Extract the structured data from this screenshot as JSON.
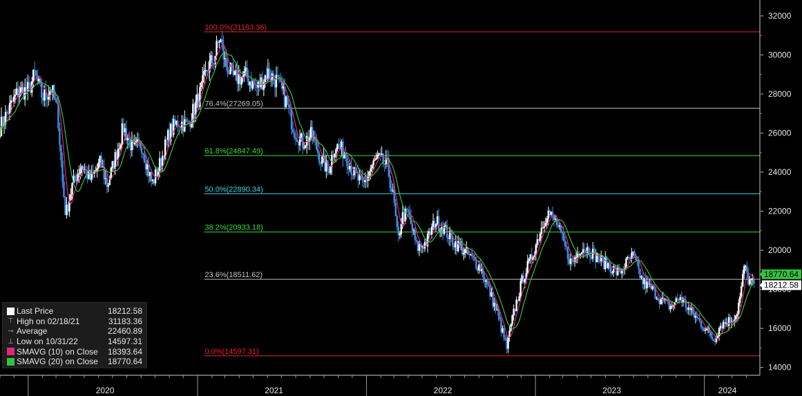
{
  "chart_data": {
    "type": "candlestick",
    "y_range": [
      13600,
      32600
    ],
    "y_ticks": [
      14000,
      16000,
      18000,
      20000,
      22000,
      24000,
      26000,
      28000,
      30000,
      32000
    ],
    "x_range": [
      "2019-11-01",
      "2024-04-18"
    ],
    "x_year_labels": [
      {
        "label": "2020",
        "center": "2020-06-15"
      },
      {
        "label": "2021",
        "center": "2021-06-15"
      },
      {
        "label": "2022",
        "center": "2022-06-15"
      },
      {
        "label": "2023",
        "center": "2023-06-15"
      },
      {
        "label": "2024",
        "center": "2024-02-20"
      }
    ],
    "x_year_boundaries": [
      "2020-01-01",
      "2021-01-01",
      "2022-01-01",
      "2023-01-01",
      "2024-01-01"
    ],
    "fibonacci": {
      "start_date": "2021-01-15",
      "levels": [
        {
          "text": "100.0%(31183.36)",
          "value": 31183.36,
          "color": "#e8252a"
        },
        {
          "text": "76.4%(27269.05)",
          "value": 27269.05,
          "color": "#c0c0c0"
        },
        {
          "text": "61.8%(24847.49)",
          "value": 24847.49,
          "color": "#3adf3a"
        },
        {
          "text": "50.0%(22890.34)",
          "value": 22890.34,
          "color": "#3ad6e6"
        },
        {
          "text": "38.2%(20933.18)",
          "value": 20933.18,
          "color": "#3adf3a"
        },
        {
          "text": "23.6%(18511.62)",
          "value": 18511.62,
          "color": "#c0c0c0"
        },
        {
          "text": "0.0%(14597.31)",
          "value": 14597.31,
          "color": "#e8252a"
        }
      ]
    },
    "price_path": [
      [
        "2019-11-01",
        26300
      ],
      [
        "2019-11-20",
        27200
      ],
      [
        "2019-12-10",
        28100
      ],
      [
        "2020-01-02",
        28200
      ],
      [
        "2020-01-15",
        29000
      ],
      [
        "2020-02-01",
        27800
      ],
      [
        "2020-02-20",
        28300
      ],
      [
        "2020-03-05",
        27000
      ],
      [
        "2020-03-15",
        23500
      ],
      [
        "2020-03-22",
        21800
      ],
      [
        "2020-04-05",
        23300
      ],
      [
        "2020-04-25",
        24400
      ],
      [
        "2020-05-15",
        23600
      ],
      [
        "2020-06-05",
        24500
      ],
      [
        "2020-06-20",
        23300
      ],
      [
        "2020-07-10",
        25000
      ],
      [
        "2020-07-25",
        26300
      ],
      [
        "2020-08-15",
        25100
      ],
      [
        "2020-09-01",
        25500
      ],
      [
        "2020-09-15",
        24200
      ],
      [
        "2020-09-25",
        23400
      ],
      [
        "2020-10-10",
        24300
      ],
      [
        "2020-11-01",
        26000
      ],
      [
        "2020-11-20",
        26600
      ],
      [
        "2020-12-10",
        26400
      ],
      [
        "2021-01-05",
        27900
      ],
      [
        "2021-01-22",
        29300
      ],
      [
        "2021-02-05",
        29800
      ],
      [
        "2021-02-18",
        30900
      ],
      [
        "2021-03-01",
        29600
      ],
      [
        "2021-03-20",
        28800
      ],
      [
        "2021-04-15",
        28900
      ],
      [
        "2021-05-10",
        28300
      ],
      [
        "2021-06-01",
        29100
      ],
      [
        "2021-06-20",
        28700
      ],
      [
        "2021-07-10",
        27700
      ],
      [
        "2021-07-28",
        26200
      ],
      [
        "2021-08-15",
        25500
      ],
      [
        "2021-09-05",
        25900
      ],
      [
        "2021-09-25",
        24600
      ],
      [
        "2021-10-10",
        24100
      ],
      [
        "2021-10-25",
        25400
      ],
      [
        "2021-11-15",
        25000
      ],
      [
        "2021-12-05",
        23900
      ],
      [
        "2021-12-25",
        23300
      ],
      [
        "2022-01-10",
        24200
      ],
      [
        "2022-01-25",
        24700
      ],
      [
        "2022-02-15",
        24300
      ],
      [
        "2022-03-01",
        22500
      ],
      [
        "2022-03-10",
        20400
      ],
      [
        "2022-03-18",
        21700
      ],
      [
        "2022-04-01",
        21900
      ],
      [
        "2022-04-20",
        20100
      ],
      [
        "2022-05-10",
        20400
      ],
      [
        "2022-05-30",
        21500
      ],
      [
        "2022-06-15",
        21200
      ],
      [
        "2022-07-05",
        20500
      ],
      [
        "2022-07-25",
        20100
      ],
      [
        "2022-08-15",
        19600
      ],
      [
        "2022-09-05",
        19100
      ],
      [
        "2022-09-25",
        17800
      ],
      [
        "2022-10-10",
        16800
      ],
      [
        "2022-10-31",
        15000
      ],
      [
        "2022-11-15",
        16800
      ],
      [
        "2022-12-05",
        18600
      ],
      [
        "2022-12-25",
        19700
      ],
      [
        "2023-01-10",
        20900
      ],
      [
        "2023-01-27",
        22000
      ],
      [
        "2023-02-15",
        21400
      ],
      [
        "2023-03-05",
        20200
      ],
      [
        "2023-03-20",
        19300
      ],
      [
        "2023-04-10",
        20200
      ],
      [
        "2023-04-28",
        20000
      ],
      [
        "2023-05-20",
        19500
      ],
      [
        "2023-06-10",
        19200
      ],
      [
        "2023-06-30",
        18800
      ],
      [
        "2023-07-15",
        19300
      ],
      [
        "2023-07-31",
        19700
      ],
      [
        "2023-08-20",
        18400
      ],
      [
        "2023-09-10",
        18000
      ],
      [
        "2023-10-01",
        17400
      ],
      [
        "2023-10-20",
        17100
      ],
      [
        "2023-11-10",
        17600
      ],
      [
        "2023-12-01",
        16900
      ],
      [
        "2023-12-20",
        16400
      ],
      [
        "2024-01-10",
        15800
      ],
      [
        "2024-01-22",
        15400
      ],
      [
        "2024-02-05",
        16200
      ],
      [
        "2024-02-25",
        16400
      ],
      [
        "2024-03-10",
        16700
      ],
      [
        "2024-03-20",
        17800
      ],
      [
        "2024-03-27",
        19200
      ],
      [
        "2024-04-05",
        18500
      ],
      [
        "2024-04-18",
        18212
      ]
    ],
    "sma10_color": "#e0287a",
    "sma20_color": "#35c23e",
    "candle_up_color": "#ffffff",
    "candle_down_color": "#3d8fe6",
    "last_price_tags": [
      {
        "text": "18770.64",
        "value": 18770.64,
        "bg": "#35c23e",
        "fg": "#000000"
      },
      {
        "text": "18212.58",
        "value": 18212.58,
        "bg": "#ffffff",
        "fg": "#000000"
      }
    ]
  },
  "legend": {
    "rows": [
      {
        "marker": "white",
        "label": "Last Price",
        "value": "18212.58"
      },
      {
        "marker": "high",
        "label": "High on 02/18/21",
        "value": "31183.36"
      },
      {
        "marker": "avg",
        "label": "Average",
        "value": "22460.89"
      },
      {
        "marker": "low",
        "label": "Low on 10/31/22",
        "value": "14597.31"
      },
      {
        "marker": "#e0287a",
        "label": "SMAVG (10)   on Close",
        "value": "18393.64"
      },
      {
        "marker": "#35c23e",
        "label": "SMAVG (20)   on Close",
        "value": "18770.64"
      }
    ]
  }
}
